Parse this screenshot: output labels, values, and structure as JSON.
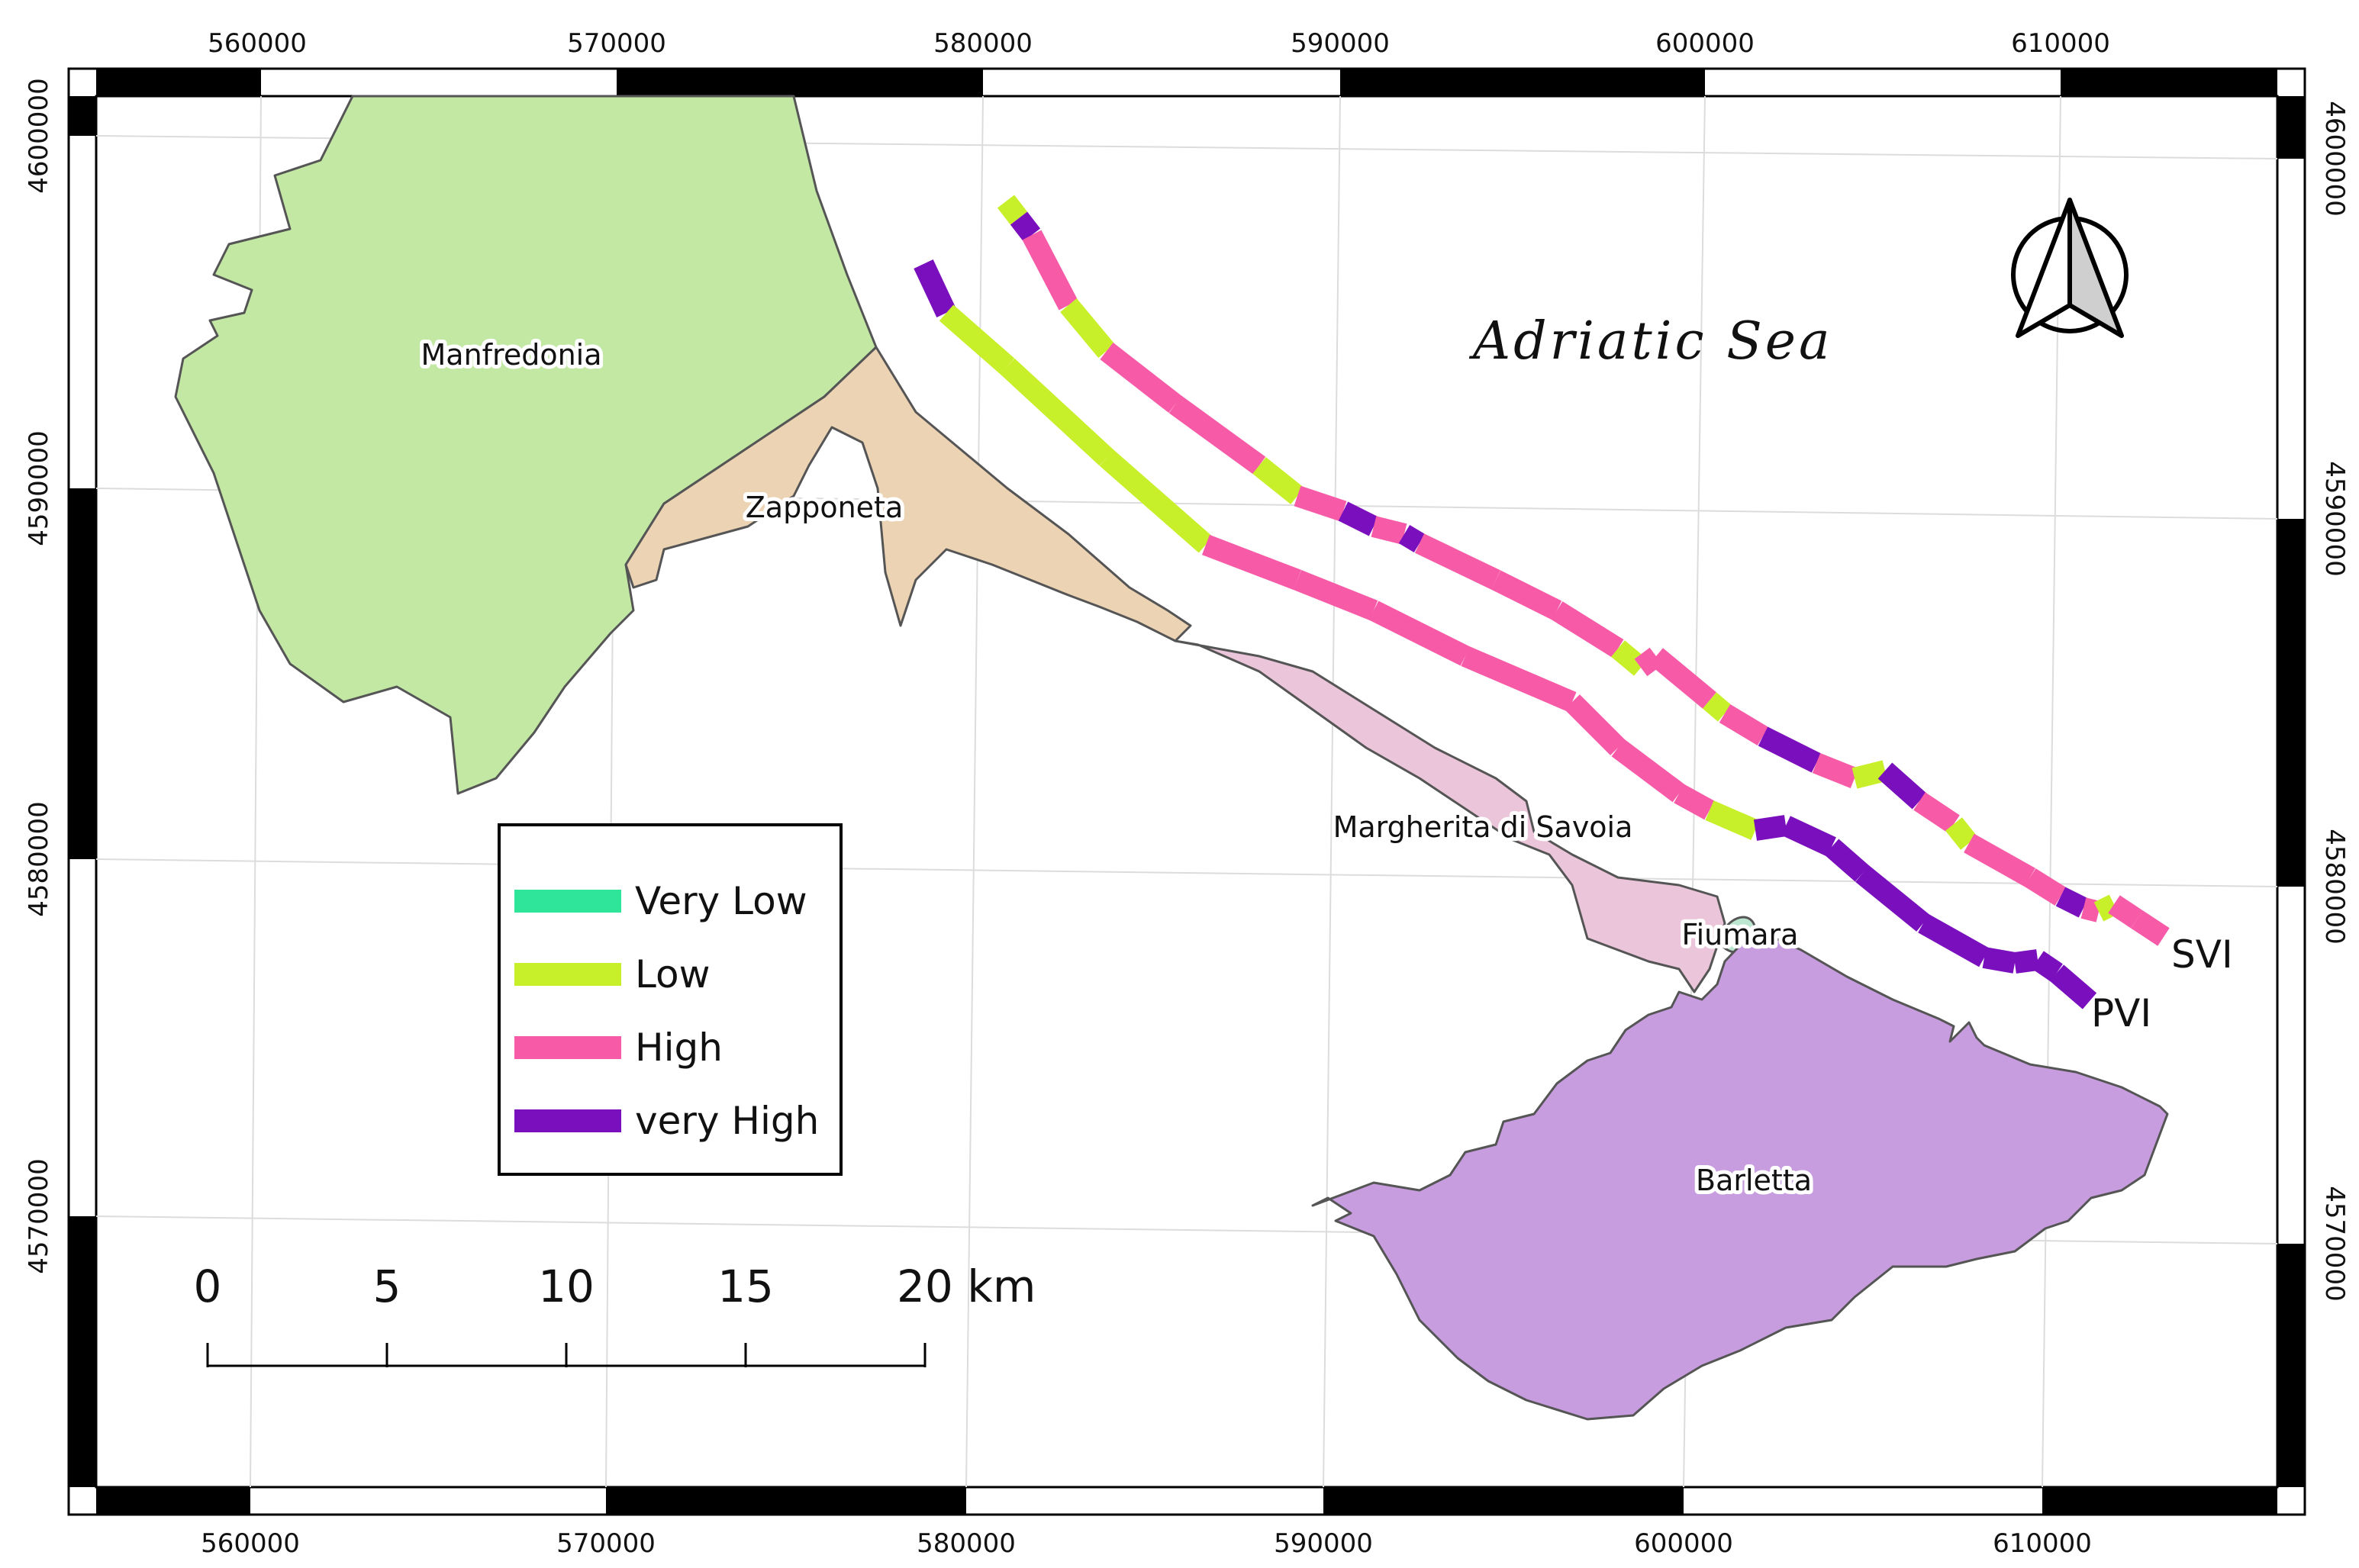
{
  "map": {
    "sea_label": "Adriatic Sea",
    "x_ticks": [
      "560000",
      "570000",
      "580000",
      "590000",
      "600000",
      "610000"
    ],
    "y_ticks": [
      "4600000",
      "4590000",
      "4580000",
      "4570000"
    ],
    "municipalities": [
      {
        "name": "Manfredonia",
        "color": "#c2e8a4"
      },
      {
        "name": "Zapponeta",
        "color": "#ecd3b4"
      },
      {
        "name": "Margherita di Savoia",
        "color": "#ebc5d9"
      },
      {
        "name": "Fiumara",
        "color": "#bde6d0"
      },
      {
        "name": "Barletta",
        "color": "#c79ddf"
      }
    ],
    "index_labels": {
      "svi": "SVI",
      "pvi": "PVI"
    },
    "legend": [
      {
        "label": "Very Low",
        "color": "#2ee59a"
      },
      {
        "label": "Low",
        "color": "#c8f02a"
      },
      {
        "label": "High",
        "color": "#f75ba8"
      },
      {
        "label": "very High",
        "color": "#7a0fbd"
      }
    ],
    "scale_bar": {
      "ticks": [
        "0",
        "5",
        "10",
        "15",
        "20 km"
      ]
    },
    "north_arrow": "north-arrow-icon"
  }
}
